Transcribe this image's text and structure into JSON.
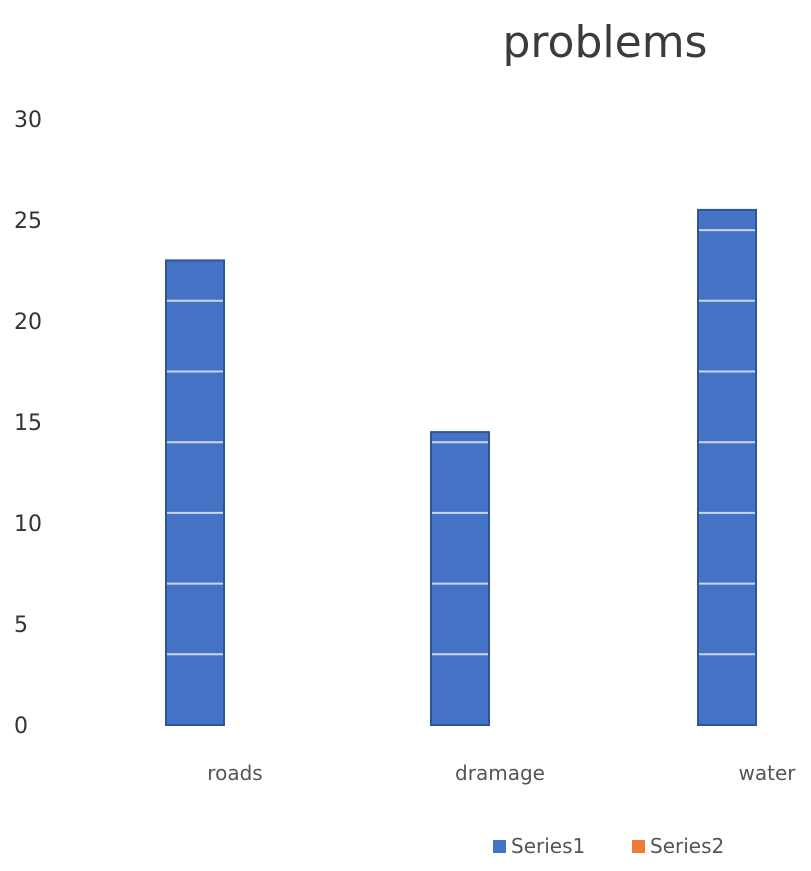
{
  "chart_data": {
    "type": "bar",
    "title": "problems",
    "xlabel": "",
    "ylabel": "",
    "categories": [
      "roads",
      "dramage",
      "water"
    ],
    "series": [
      {
        "name": "Series1",
        "values": [
          23,
          14.5,
          25.5
        ],
        "color": "#4472c4"
      },
      {
        "name": "Series2",
        "values": [
          0,
          0,
          0
        ],
        "color": "#ed7d31"
      }
    ],
    "ylim": [
      0,
      30
    ],
    "y_ticks": [
      0,
      5,
      10,
      15,
      20,
      25,
      30
    ],
    "y_tick_labels": [
      "0",
      "5",
      "10",
      "15",
      "20",
      "25",
      "30"
    ],
    "grid": false,
    "legend_position": "bottom-right"
  }
}
